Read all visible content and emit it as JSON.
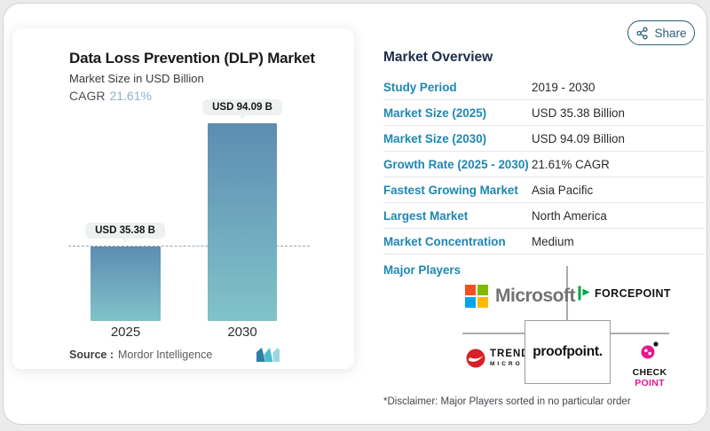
{
  "window": {
    "share_label": "Share"
  },
  "chart_panel": {
    "title": "Data Loss Prevention (DLP) Market",
    "subtitle": "Market Size in USD Billion",
    "cagr_label": "CAGR",
    "cagr_value": "21.61%",
    "source_label": "Source :",
    "source_name": "Mordor Intelligence"
  },
  "chart_data": {
    "type": "bar",
    "categories": [
      "2025",
      "2030"
    ],
    "values": [
      35.38,
      94.09
    ],
    "bar_labels": [
      "USD 35.38 B",
      "USD 94.09 B"
    ],
    "title": "Data Loss Prevention (DLP) Market",
    "ylabel": "Market Size in USD Billion",
    "ylim": [
      0,
      100
    ],
    "grid": false,
    "legend": "none",
    "reference_line": {
      "value": 35.38,
      "style": "dashed"
    },
    "bar_color_top": "#5d8db2",
    "bar_color_bottom": "#80c3c9"
  },
  "overview": {
    "heading": "Market Overview",
    "rows": [
      {
        "label": "Study Period",
        "value": "2019 - 2030"
      },
      {
        "label": "Market Size (2025)",
        "value": "USD 35.38 Billion"
      },
      {
        "label": "Market Size (2030)",
        "value": "USD 94.09 Billion"
      },
      {
        "label": "Growth Rate (2025 - 2030)",
        "value": "21.61% CAGR"
      },
      {
        "label": "Fastest Growing Market",
        "value": "Asia Pacific"
      },
      {
        "label": "Largest Market",
        "value": "North America"
      },
      {
        "label": "Market Concentration",
        "value": "Medium"
      }
    ],
    "major_players_label": "Major Players",
    "players": [
      {
        "name": "Microsoft"
      },
      {
        "name": "FORCEPOINT"
      },
      {
        "name": "TREND",
        "sub": "MICRO"
      },
      {
        "name": "proofpoint."
      },
      {
        "name": "CHECK",
        "accent": "POINT"
      }
    ],
    "disclaimer": "*Disclaimer: Major Players sorted in no particular order"
  },
  "colors": {
    "accent_blue": "#1e87b2",
    "heading_navy": "#1d2d49",
    "share_teal": "#2a5f78",
    "cagr_value_blue": "#8fb0cd",
    "microsoft_gray": "#737373",
    "ms_red": "#f25022",
    "ms_green": "#7fba00",
    "ms_blue": "#00a4ef",
    "ms_yellow": "#ffb900",
    "forcepoint_green": "#00a844",
    "trend_red": "#d71f27",
    "checkpoint_pink": "#e8168c"
  }
}
